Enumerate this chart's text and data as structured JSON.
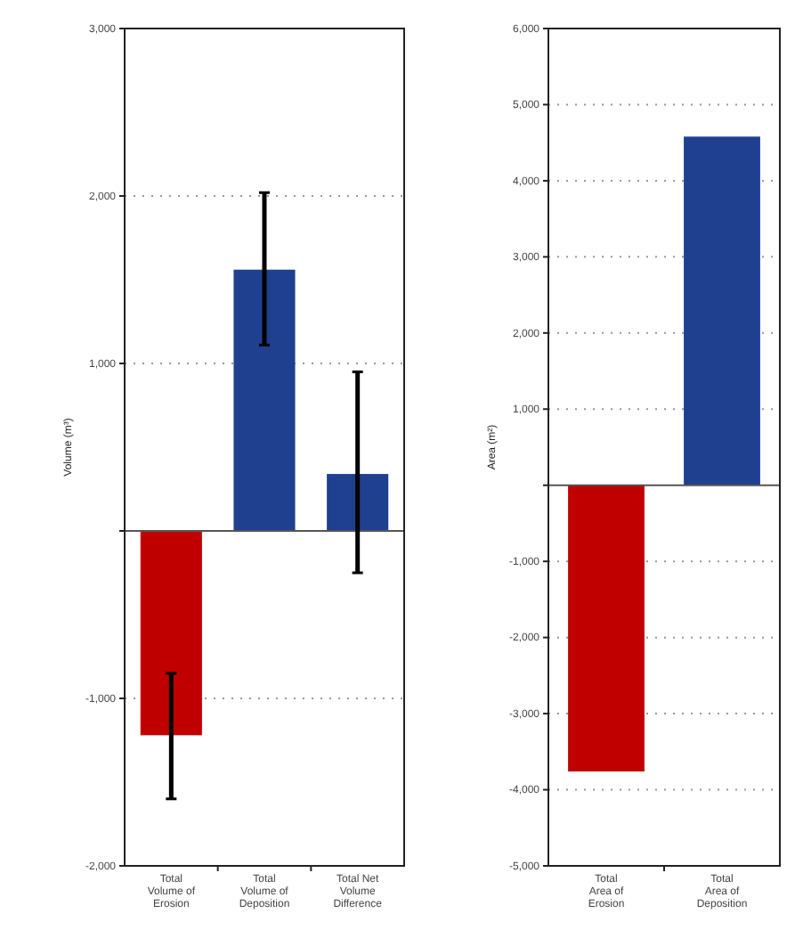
{
  "chart_data": [
    {
      "type": "bar",
      "ylabel": "Volume (m³)",
      "categories": [
        "Total Volume of Erosion",
        "Total Volume of Deposition",
        "Total Net Volume Difference"
      ],
      "values": [
        -1220,
        1560,
        340
      ],
      "colors": [
        "#c00000",
        "#1f3f8f",
        "#1f3f8f"
      ],
      "errors": [
        [
          -1600,
          -850
        ],
        [
          1110,
          2020
        ],
        [
          -250,
          950
        ]
      ],
      "ylim": [
        -2000,
        3000
      ],
      "yticks": [
        {
          "value": -2000,
          "label": "-2,000"
        },
        {
          "value": -1000,
          "label": "-1,000"
        },
        {
          "value": 0,
          "label": null
        },
        {
          "value": 1000,
          "label": "1,000"
        },
        {
          "value": 2000,
          "label": "2,000"
        },
        {
          "value": 3000,
          "label": "3,000"
        }
      ],
      "grid": "y"
    },
    {
      "type": "bar",
      "ylabel": "Area (m²)",
      "categories": [
        "Total Area of Erosion",
        "Total Area of Deposition"
      ],
      "values": [
        -3760,
        4580
      ],
      "colors": [
        "#c00000",
        "#1f3f8f"
      ],
      "ylim": [
        -5000,
        6000
      ],
      "yticks": [
        {
          "value": -5000,
          "label": "-5,000"
        },
        {
          "value": -4000,
          "label": "-4,000"
        },
        {
          "value": -3000,
          "label": "-3,000"
        },
        {
          "value": -2000,
          "label": "-2,000"
        },
        {
          "value": -1000,
          "label": "-1,000"
        },
        {
          "value": 0,
          "label": null
        },
        {
          "value": 1000,
          "label": "1,000"
        },
        {
          "value": 2000,
          "label": "2,000"
        },
        {
          "value": 3000,
          "label": "3,000"
        },
        {
          "value": 4000,
          "label": "4,000"
        },
        {
          "value": 5000,
          "label": "5,000"
        },
        {
          "value": 6000,
          "label": "6,000"
        }
      ],
      "grid": "y"
    }
  ]
}
